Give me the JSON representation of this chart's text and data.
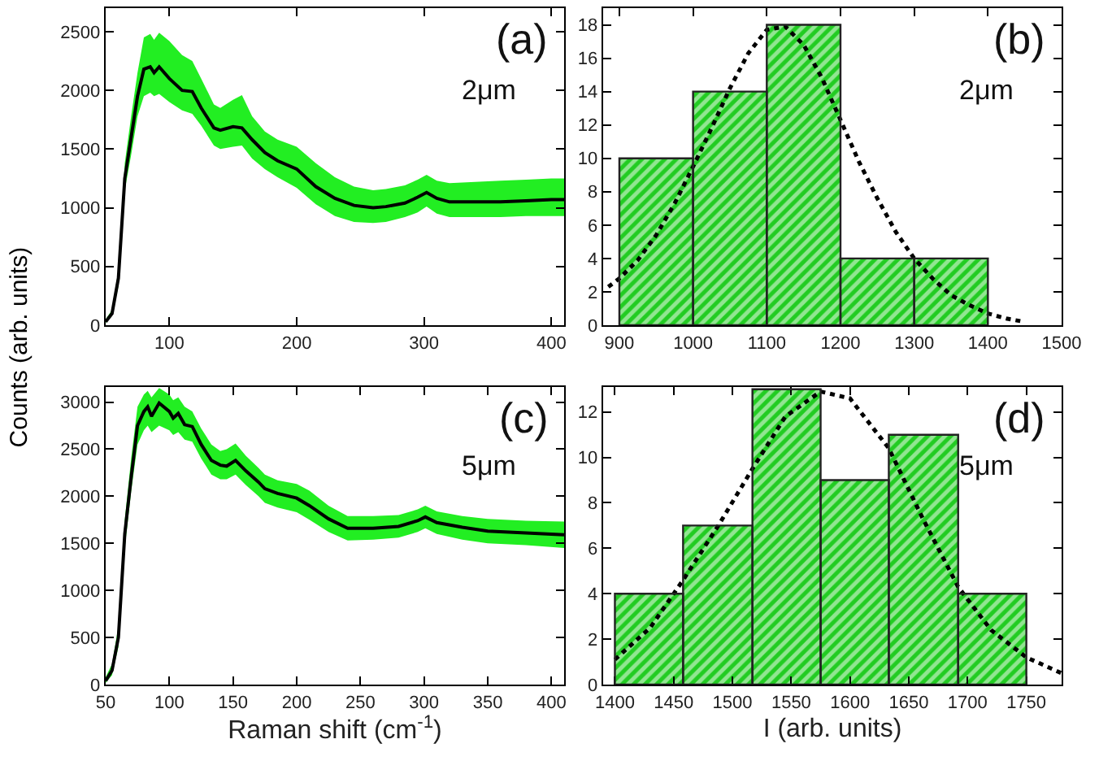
{
  "chart_data": [
    {
      "type": "line",
      "ylabel": "Counts (arb. units)",
      "annotations": [
        "(a)",
        "2μm"
      ],
      "x": [
        50,
        55,
        60,
        65,
        70,
        75,
        80,
        85,
        88,
        92,
        100,
        110,
        118,
        125,
        135,
        140,
        150,
        157,
        165,
        175,
        185,
        200,
        215,
        230,
        245,
        260,
        270,
        285,
        295,
        302,
        310,
        320,
        340,
        360,
        380,
        400,
        410
      ],
      "series": [
        {
          "color": "#000000",
          "values": [
            30,
            100,
            400,
            1250,
            1600,
            1950,
            2180,
            2200,
            2150,
            2200,
            2100,
            2000,
            1990,
            1850,
            1680,
            1660,
            1690,
            1680,
            1580,
            1470,
            1400,
            1330,
            1180,
            1080,
            1020,
            1000,
            1010,
            1040,
            1090,
            1130,
            1080,
            1050,
            1050,
            1050,
            1060,
            1070,
            1070
          ],
          "lower": [
            20,
            80,
            330,
            1150,
            1450,
            1780,
            1950,
            1980,
            1950,
            1970,
            1900,
            1830,
            1800,
            1700,
            1530,
            1500,
            1520,
            1530,
            1420,
            1330,
            1260,
            1170,
            1030,
            930,
            880,
            870,
            880,
            920,
            960,
            1010,
            950,
            920,
            920,
            920,
            930,
            930,
            930
          ],
          "upper": [
            50,
            130,
            470,
            1380,
            1780,
            2150,
            2450,
            2480,
            2430,
            2490,
            2420,
            2300,
            2250,
            2100,
            1880,
            1850,
            1920,
            1960,
            1780,
            1650,
            1580,
            1520,
            1380,
            1260,
            1180,
            1150,
            1160,
            1190,
            1240,
            1280,
            1230,
            1210,
            1220,
            1230,
            1240,
            1250,
            1250
          ]
        }
      ],
      "xlim": [
        50,
        410
      ],
      "xticks": [
        100,
        200,
        300,
        400
      ],
      "ylim": [
        0,
        2700
      ],
      "yticks": [
        0,
        500,
        1000,
        1500,
        2000,
        2500
      ],
      "grid": false
    },
    {
      "type": "histogram",
      "annotations": [
        "(b)",
        "2μm"
      ],
      "color": "#22cc22",
      "bins": [
        900,
        1000,
        1100,
        1200,
        1300,
        1400
      ],
      "values": [
        10,
        14,
        18,
        4,
        4
      ],
      "series": [
        {
          "type": "line",
          "color": "#000000",
          "line_style": "dotted",
          "x": [
            885,
            900,
            925,
            950,
            975,
            1000,
            1025,
            1050,
            1075,
            1100,
            1125,
            1150,
            1175,
            1200,
            1225,
            1250,
            1275,
            1300,
            1325,
            1350,
            1375,
            1400,
            1425,
            1450
          ],
          "values": [
            2.3,
            2.8,
            3.9,
            5.4,
            7.3,
            9.5,
            11.8,
            14.2,
            16.3,
            17.7,
            17.9,
            16.8,
            14.8,
            12.3,
            9.8,
            7.6,
            5.6,
            4.0,
            2.8,
            1.8,
            1.2,
            0.7,
            0.4,
            0.2
          ]
        }
      ],
      "xlim": [
        878,
        1500
      ],
      "xticks": [
        900,
        1000,
        1100,
        1200,
        1300,
        1400,
        1500
      ],
      "ylim": [
        0,
        19
      ],
      "yticks": [
        0,
        2,
        4,
        6,
        8,
        10,
        12,
        14,
        16,
        18
      ],
      "grid": false
    },
    {
      "type": "line",
      "xlabel": "Raman shift (cm$^{-1}$)",
      "annotations": [
        "(c)",
        "5μm"
      ],
      "x": [
        50,
        55,
        60,
        65,
        70,
        75,
        80,
        83,
        86,
        92,
        100,
        103,
        107,
        112,
        118,
        125,
        133,
        140,
        145,
        152,
        160,
        170,
        175,
        185,
        200,
        210,
        225,
        240,
        260,
        280,
        295,
        301,
        310,
        330,
        350,
        380,
        410
      ],
      "series": [
        {
          "color": "#000000",
          "values": [
            40,
            150,
            500,
            1600,
            2200,
            2750,
            2900,
            2950,
            2850,
            2990,
            2900,
            2830,
            2880,
            2760,
            2740,
            2550,
            2380,
            2330,
            2320,
            2380,
            2270,
            2150,
            2080,
            2030,
            1980,
            1900,
            1760,
            1660,
            1660,
            1680,
            1740,
            1780,
            1720,
            1670,
            1630,
            1610,
            1590
          ],
          "lower": [
            20,
            100,
            400,
            1450,
            2050,
            2550,
            2700,
            2750,
            2680,
            2750,
            2700,
            2650,
            2680,
            2600,
            2580,
            2400,
            2230,
            2180,
            2180,
            2230,
            2120,
            2000,
            1930,
            1880,
            1830,
            1750,
            1620,
            1530,
            1540,
            1560,
            1620,
            1660,
            1600,
            1540,
            1500,
            1480,
            1450
          ],
          "upper": [
            80,
            220,
            620,
            1750,
            2400,
            2950,
            3080,
            3120,
            3050,
            3150,
            3080,
            3020,
            3050,
            2950,
            2900,
            2720,
            2550,
            2480,
            2500,
            2560,
            2430,
            2300,
            2230,
            2170,
            2130,
            2060,
            1900,
            1790,
            1790,
            1800,
            1860,
            1900,
            1840,
            1790,
            1760,
            1740,
            1730
          ]
        }
      ],
      "xlim": [
        50,
        410
      ],
      "xticks": [
        50,
        100,
        150,
        200,
        250,
        300,
        350,
        400
      ],
      "ylim": [
        0,
        3160
      ],
      "yticks": [
        0,
        500,
        1000,
        1500,
        2000,
        2500,
        3000
      ],
      "grid": false
    },
    {
      "type": "histogram",
      "xlabel": "I (arb. units)",
      "annotations": [
        "(d)",
        "5μm"
      ],
      "color": "#22cc22",
      "bins": [
        1400,
        1458,
        1517,
        1575,
        1633,
        1692,
        1750
      ],
      "values": [
        4,
        7,
        13,
        9,
        11,
        4
      ],
      "series": [
        {
          "type": "line",
          "color": "#000000",
          "line_style": "dotted",
          "x": [
            1400,
            1430,
            1458,
            1488,
            1517,
            1545,
            1575,
            1600,
            1633,
            1662,
            1692,
            1720,
            1750,
            1780
          ],
          "values": [
            1.1,
            2.5,
            4.6,
            7.0,
            9.5,
            11.8,
            12.9,
            12.6,
            10.4,
            7.3,
            4.3,
            2.4,
            1.2,
            0.5
          ]
        }
      ],
      "xlim": [
        1390,
        1780
      ],
      "xticks": [
        1400,
        1450,
        1500,
        1550,
        1600,
        1650,
        1700,
        1750
      ],
      "ylim": [
        0,
        13.1
      ],
      "yticks": [
        0,
        2,
        4,
        6,
        8,
        10,
        12
      ],
      "grid": false
    }
  ]
}
